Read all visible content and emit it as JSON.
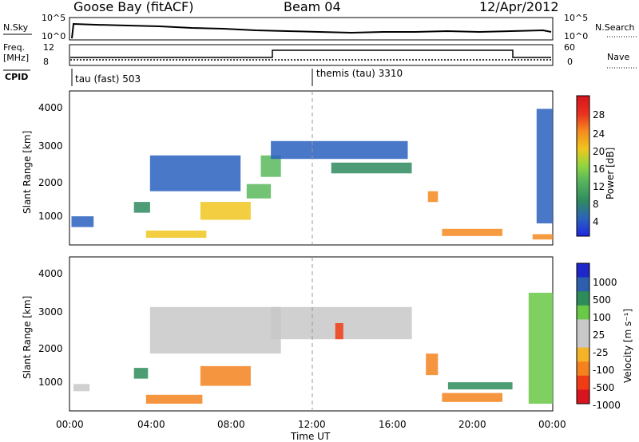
{
  "header": {
    "station": "Goose Bay (fitACF)",
    "beam": "Beam 04",
    "date": "12/Apr/2012"
  },
  "strip_labels": {
    "nsky": "N.Sky",
    "nsky_ticks": [
      "10^5",
      "10^0"
    ],
    "nsearch": "N.Search",
    "nsearch_ticks": [
      "10^5",
      "10^0"
    ],
    "freq_line1": "Freq.",
    "freq_line2": "[MHz]",
    "freq_ticks": [
      "12",
      "8"
    ],
    "nave": "Nave",
    "nave_ticks": [
      "60",
      "0"
    ],
    "cpid": "CPID",
    "cpid_modes": [
      "tau (fast) 503",
      "themis (tau) 3310"
    ]
  },
  "power_panel": {
    "ylabel": "Slant Range [km]",
    "yticks": [
      "4000",
      "3000",
      "2000",
      "1000"
    ],
    "colorbar_label": "Power [dB]",
    "colorbar_ticks": [
      "28",
      "24",
      "20",
      "16",
      "12",
      "8",
      "4"
    ]
  },
  "velocity_panel": {
    "ylabel": "Slant Range [km]",
    "yticks": [
      "4000",
      "3000",
      "2000",
      "1000"
    ],
    "colorbar_label": "Velocity [m s⁻¹]",
    "colorbar_ticks": [
      "1000",
      "500",
      "100",
      "25",
      "-25",
      "-100",
      "-500",
      "-1000"
    ]
  },
  "x_axis": {
    "label": "Time UT",
    "ticks": [
      "00:00",
      "04:00",
      "08:00",
      "12:00",
      "16:00",
      "20:00",
      "00:00"
    ]
  },
  "colors": {
    "power_scale": [
      "#1e28e0",
      "#2a60c0",
      "#2f8a60",
      "#59b85c",
      "#8fd640",
      "#f0c61e",
      "#f58a1e",
      "#e8321e",
      "#d8141e"
    ],
    "velocity_scale": [
      "#d8141e",
      "#f03c14",
      "#f5821e",
      "#f5b428",
      "#c8c8c8",
      "#c8c8c8",
      "#69c845",
      "#2e8c5a",
      "#2e5fae",
      "#1e28c8"
    ]
  },
  "chart_data": {
    "type": "heatmap",
    "title": "Goose Bay (fitACF)",
    "x_unit": "hours UT",
    "xlim": [
      0,
      24
    ],
    "ylim": [
      200,
      4500
    ],
    "cpid_switch_hour": 12,
    "frequency_mhz": [
      {
        "from": 0,
        "to": 10,
        "value": 10.5
      },
      {
        "from": 10,
        "to": 22,
        "value": 11.4
      },
      {
        "from": 22,
        "to": 24,
        "value": 10.5
      }
    ],
    "power_regions": [
      {
        "t0": 0.1,
        "t1": 1.2,
        "r0": 700,
        "r1": 1000,
        "dB": 6
      },
      {
        "t0": 3.2,
        "t1": 4.0,
        "r0": 1100,
        "r1": 1400,
        "dB": 10
      },
      {
        "t0": 3.8,
        "t1": 6.8,
        "r0": 400,
        "r1": 600,
        "dB": 18
      },
      {
        "t0": 6.5,
        "t1": 9.0,
        "r0": 900,
        "r1": 1400,
        "dB": 20
      },
      {
        "t0": 8.8,
        "t1": 10.0,
        "r0": 1500,
        "r1": 1900,
        "dB": 14
      },
      {
        "t0": 9.5,
        "t1": 10.5,
        "r0": 2100,
        "r1": 2700,
        "dB": 12
      },
      {
        "t0": 4.0,
        "t1": 8.5,
        "r0": 1700,
        "r1": 2700,
        "dB": 6
      },
      {
        "t0": 10.0,
        "t1": 16.8,
        "r0": 2600,
        "r1": 3100,
        "dB": 6
      },
      {
        "t0": 13.0,
        "t1": 17.0,
        "r0": 2200,
        "r1": 2500,
        "dB": 8
      },
      {
        "t0": 17.8,
        "t1": 18.3,
        "r0": 1400,
        "r1": 1700,
        "dB": 24
      },
      {
        "t0": 18.5,
        "t1": 21.5,
        "r0": 450,
        "r1": 650,
        "dB": 24
      },
      {
        "t0": 23.0,
        "t1": 24.0,
        "r0": 350,
        "r1": 500,
        "dB": 24
      },
      {
        "t0": 23.2,
        "t1": 24.0,
        "r0": 800,
        "r1": 4000,
        "dB": 6
      }
    ],
    "velocity_regions": [
      {
        "t0": 0.2,
        "t1": 1.0,
        "r0": 750,
        "r1": 950,
        "v": 0
      },
      {
        "t0": 3.2,
        "t1": 3.9,
        "r0": 1100,
        "r1": 1400,
        "v": 200
      },
      {
        "t0": 3.8,
        "t1": 6.6,
        "r0": 400,
        "r1": 650,
        "v": -200
      },
      {
        "t0": 6.5,
        "t1": 9.0,
        "r0": 900,
        "r1": 1450,
        "v": -150
      },
      {
        "t0": 4.0,
        "t1": 10.5,
        "r0": 1800,
        "r1": 3100,
        "v": 0
      },
      {
        "t0": 10.0,
        "t1": 17.0,
        "r0": 2200,
        "r1": 3100,
        "v": 0
      },
      {
        "t0": 13.2,
        "t1": 13.6,
        "r0": 2200,
        "r1": 2650,
        "v": -800
      },
      {
        "t0": 17.7,
        "t1": 18.3,
        "r0": 1200,
        "r1": 1800,
        "v": -300
      },
      {
        "t0": 18.5,
        "t1": 21.5,
        "r0": 450,
        "r1": 700,
        "v": -100
      },
      {
        "t0": 18.8,
        "t1": 22.0,
        "r0": 800,
        "r1": 1000,
        "v": 300
      },
      {
        "t0": 22.8,
        "t1": 24.0,
        "r0": 400,
        "r1": 3500,
        "v": 50
      }
    ]
  }
}
